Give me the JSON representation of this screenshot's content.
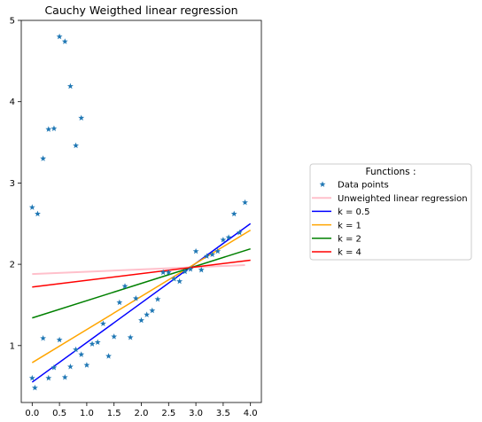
{
  "chart_data": {
    "type": "scatter",
    "title": "Cauchy Weigthed linear regression",
    "xlabel": "",
    "ylabel": "",
    "xlim": [
      -0.2,
      4.2
    ],
    "ylim": [
      0.3,
      5.0
    ],
    "xticks": [
      0.0,
      0.5,
      1.0,
      1.5,
      2.0,
      2.5,
      3.0,
      3.5,
      4.0
    ],
    "xtick_labels": [
      "0.0",
      "0.5",
      "1.0",
      "1.5",
      "2.0",
      "2.5",
      "3.0",
      "3.5",
      "4.0"
    ],
    "yticks": [
      1,
      2,
      3,
      4,
      5
    ],
    "ytick_labels": [
      "1",
      "2",
      "3",
      "4",
      "5"
    ],
    "grid": false,
    "legend": {
      "title": "Functions :",
      "placement": "outside right"
    },
    "scatter": {
      "name": "Data points",
      "color": "#1f77b4",
      "marker": "star",
      "points": [
        [
          0.0,
          2.7
        ],
        [
          0.0,
          0.6
        ],
        [
          0.05,
          0.48
        ],
        [
          0.1,
          2.62
        ],
        [
          0.2,
          1.09
        ],
        [
          0.2,
          3.3
        ],
        [
          0.3,
          3.66
        ],
        [
          0.3,
          0.6
        ],
        [
          0.4,
          3.67
        ],
        [
          0.4,
          0.73
        ],
        [
          0.5,
          4.8
        ],
        [
          0.5,
          1.07
        ],
        [
          0.6,
          4.74
        ],
        [
          0.6,
          0.61
        ],
        [
          0.7,
          4.19
        ],
        [
          0.7,
          0.74
        ],
        [
          0.8,
          3.46
        ],
        [
          0.8,
          0.95
        ],
        [
          0.9,
          3.8
        ],
        [
          0.9,
          0.89
        ],
        [
          1.0,
          0.76
        ],
        [
          1.1,
          1.02
        ],
        [
          1.2,
          1.04
        ],
        [
          1.3,
          1.27
        ],
        [
          1.4,
          0.87
        ],
        [
          1.5,
          1.11
        ],
        [
          1.6,
          1.53
        ],
        [
          1.7,
          1.73
        ],
        [
          1.8,
          1.1
        ],
        [
          1.9,
          1.58
        ],
        [
          2.0,
          1.31
        ],
        [
          2.1,
          1.38
        ],
        [
          2.2,
          1.43
        ],
        [
          2.3,
          1.57
        ],
        [
          2.4,
          1.9
        ],
        [
          2.5,
          1.9
        ],
        [
          2.6,
          1.82
        ],
        [
          2.7,
          1.79
        ],
        [
          2.8,
          1.91
        ],
        [
          2.9,
          1.94
        ],
        [
          3.0,
          2.16
        ],
        [
          3.1,
          1.93
        ],
        [
          3.2,
          2.1
        ],
        [
          3.3,
          2.12
        ],
        [
          3.4,
          2.16
        ],
        [
          3.5,
          2.3
        ],
        [
          3.6,
          2.33
        ],
        [
          3.7,
          2.62
        ],
        [
          3.8,
          2.39
        ],
        [
          3.9,
          2.76
        ]
      ]
    },
    "series": [
      {
        "name": "Unweighted linear regression",
        "color": "#ffc0cb",
        "width": 2.0,
        "x": [
          0.0,
          3.9
        ],
        "y": [
          1.88,
          1.99
        ]
      },
      {
        "name": "k = 0.5",
        "color": "#0000ff",
        "width": 1.5,
        "x": [
          0.0,
          4.0
        ],
        "y": [
          0.55,
          2.5
        ]
      },
      {
        "name": "k = 1",
        "color": "#ffa500",
        "width": 1.5,
        "x": [
          0.0,
          4.0
        ],
        "y": [
          0.79,
          2.42
        ]
      },
      {
        "name": "k = 2",
        "color": "#008000",
        "width": 1.5,
        "x": [
          0.0,
          4.0
        ],
        "y": [
          1.34,
          2.19
        ]
      },
      {
        "name": "k = 4",
        "color": "#ff0000",
        "width": 1.5,
        "x": [
          0.0,
          4.0
        ],
        "y": [
          1.72,
          2.05
        ]
      }
    ]
  }
}
